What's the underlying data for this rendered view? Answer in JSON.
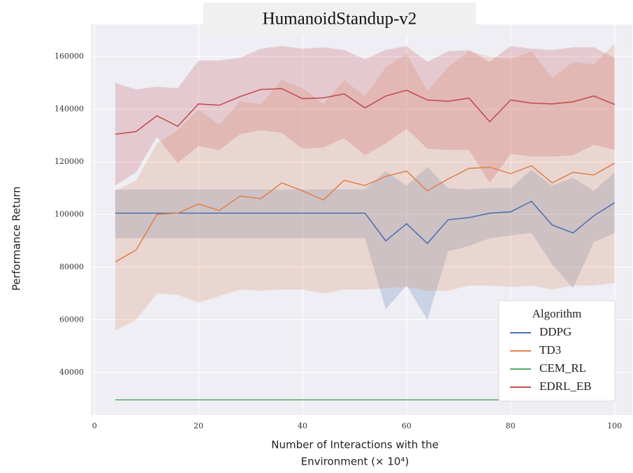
{
  "chart_data": {
    "type": "line",
    "title": "HumanoidStandup-v2",
    "x_label": [
      "Number of Interactions with the",
      "Environment (× 10⁴)"
    ],
    "y_label": "Performance Return",
    "legend_title": "Algorithm",
    "legend": "lower right",
    "grid": true,
    "x": [
      4,
      8,
      12,
      16,
      20,
      24,
      28,
      32,
      36,
      40,
      44,
      48,
      52,
      56,
      60,
      64,
      68,
      72,
      76,
      80,
      84,
      88,
      92,
      96,
      100
    ],
    "xlim": [
      -0.7,
      103.4
    ],
    "xticks": [
      0,
      20,
      40,
      60,
      80,
      100
    ],
    "ylim": [
      23800,
      172200
    ],
    "yticks": [
      40000,
      60000,
      80000,
      100000,
      120000,
      140000,
      160000
    ],
    "series": [
      {
        "name": "DDPG",
        "color": "#4c72b0",
        "values": [
          100500,
          100500,
          100500,
          100500,
          100500,
          100500,
          100500,
          100500,
          100500,
          100500,
          100500,
          100500,
          100500,
          90000,
          96500,
          89000,
          98000,
          98800,
          100500,
          101000,
          105000,
          96000,
          93000,
          99500,
          104500
        ],
        "lower": [
          91000,
          91000,
          91000,
          91000,
          91000,
          91000,
          91000,
          91000,
          91000,
          91000,
          91000,
          91000,
          91000,
          64000,
          73000,
          60000,
          86000,
          88000,
          91000,
          92000,
          93000,
          81000,
          72000,
          89500,
          93000
        ],
        "upper": [
          109500,
          109500,
          109500,
          109500,
          109500,
          109500,
          109500,
          109500,
          109500,
          109500,
          109500,
          109500,
          109500,
          116500,
          111000,
          118000,
          110000,
          109500,
          110000,
          110000,
          117000,
          111000,
          114000,
          109000,
          116000
        ]
      },
      {
        "name": "TD3",
        "color": "#dd8452",
        "values": [
          82000,
          86500,
          100000,
          100500,
          104000,
          101500,
          107000,
          106000,
          112000,
          109000,
          105500,
          113000,
          111000,
          114500,
          116500,
          109000,
          113500,
          117500,
          118000,
          115500,
          118500,
          112000,
          116000,
          115000,
          119500
        ],
        "lower": [
          56000,
          60000,
          70000,
          69500,
          66500,
          69000,
          71500,
          71000,
          71500,
          71500,
          70000,
          71500,
          71500,
          72000,
          72500,
          71000,
          71000,
          73000,
          73000,
          72500,
          73000,
          71500,
          73000,
          73000,
          74000
        ],
        "upper": [
          109000,
          113000,
          127000,
          132000,
          140000,
          134000,
          143000,
          142000,
          151000,
          148000,
          142000,
          151000,
          145000,
          156000,
          161000,
          147000,
          156000,
          162000,
          160000,
          159000,
          162000,
          152000,
          158000,
          157000,
          165000
        ]
      },
      {
        "name": "CEM_RL",
        "color": "#55a868",
        "values": [
          29600,
          29600,
          29600,
          29600,
          29600,
          29600,
          29600,
          29600,
          29600,
          29600,
          29600,
          29600,
          29600,
          29600,
          29600,
          29600,
          29600,
          29600,
          29600,
          29600,
          29600,
          29600,
          29600,
          29600,
          29600
        ]
      },
      {
        "name": "EDRL_EB",
        "color": "#c44e52",
        "values": [
          130500,
          131500,
          137500,
          133500,
          142000,
          141500,
          144800,
          147500,
          147800,
          144000,
          144300,
          145800,
          140500,
          145000,
          147200,
          143500,
          143000,
          144200,
          135200,
          143500,
          142300,
          142000,
          142800,
          145000,
          141800
        ],
        "lower": [
          111000,
          116000,
          129500,
          119500,
          126000,
          124500,
          130500,
          132000,
          131000,
          125000,
          125500,
          129000,
          122500,
          127000,
          132500,
          125000,
          124500,
          124500,
          112000,
          123000,
          122000,
          122000,
          122500,
          126500,
          124500
        ],
        "upper": [
          150000,
          147500,
          148500,
          148000,
          158500,
          158500,
          159500,
          163000,
          164000,
          163000,
          163500,
          162500,
          159000,
          162500,
          164000,
          158000,
          162000,
          162500,
          158000,
          164000,
          163000,
          162500,
          163500,
          163500,
          159500
        ]
      }
    ]
  }
}
